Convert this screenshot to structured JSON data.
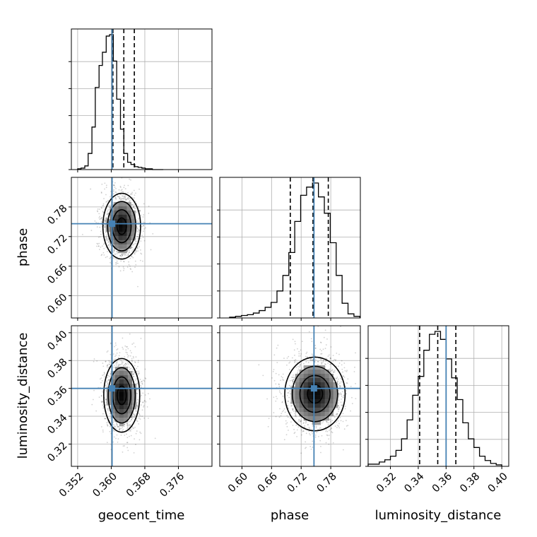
{
  "chart_data": {
    "type": "corner",
    "parameters": [
      "geocent_time",
      "phase",
      "luminosity_distance"
    ],
    "injection": {
      "geocent_time": 0.3602,
      "phase": 0.746,
      "luminosity_distance": 0.36
    },
    "injection_color": "#4682b4",
    "ranges": {
      "geocent_time": [
        0.3505,
        0.384
      ],
      "phase": [
        0.555,
        0.84
      ],
      "luminosity_distance": [
        0.304,
        0.405
      ]
    },
    "ticks": {
      "geocent_time": {
        "values": [
          0.352,
          0.36,
          0.368,
          0.376
        ],
        "labels": [
          "0.352",
          "0.360",
          "0.368",
          "0.376"
        ]
      },
      "phase": {
        "values": [
          0.6,
          0.66,
          0.72,
          0.78
        ],
        "labels": [
          "0.60",
          "0.66",
          "0.72",
          "0.78"
        ]
      },
      "luminosity_distance": {
        "values": [
          0.32,
          0.34,
          0.36,
          0.38,
          0.4
        ],
        "labels": [
          "0.32",
          "0.34",
          "0.36",
          "0.38",
          "0.40"
        ]
      }
    },
    "histograms": {
      "geocent_time": {
        "quantiles": [
          0.3604,
          0.363,
          0.3655
        ],
        "bin_edges": [
          0.352,
          0.3528,
          0.3537,
          0.3545,
          0.3554,
          0.3562,
          0.3571,
          0.3579,
          0.3588,
          0.3596,
          0.3605,
          0.3613,
          0.3622,
          0.363,
          0.3639,
          0.3647,
          0.3656,
          0.3664,
          0.3673,
          0.3681,
          0.369,
          0.3698,
          0.3707,
          0.3715,
          0.3724
        ],
        "counts": [
          1,
          2,
          5,
          22,
          58,
          112,
          142,
          160,
          182,
          184,
          148,
          96,
          55,
          22,
          10,
          7,
          4,
          3,
          2,
          1,
          1,
          0,
          0,
          0
        ]
      },
      "phase": {
        "quantiles": [
          0.698,
          0.744,
          0.775
        ],
        "bin_edges": [
          0.575,
          0.587,
          0.599,
          0.611,
          0.623,
          0.635,
          0.647,
          0.659,
          0.671,
          0.683,
          0.695,
          0.707,
          0.719,
          0.731,
          0.743,
          0.755,
          0.767,
          0.779,
          0.791,
          0.803,
          0.815,
          0.827,
          0.839
        ],
        "counts": [
          1,
          2,
          3,
          4,
          6,
          9,
          13,
          19,
          33,
          52,
          80,
          118,
          150,
          160,
          165,
          148,
          128,
          92,
          52,
          18,
          5,
          2
        ]
      },
      "luminosity_distance": {
        "quantiles": [
          0.341,
          0.354,
          0.367
        ],
        "bin_edges": [
          0.304,
          0.308,
          0.312,
          0.316,
          0.32,
          0.324,
          0.328,
          0.332,
          0.336,
          0.34,
          0.344,
          0.348,
          0.352,
          0.356,
          0.36,
          0.364,
          0.368,
          0.372,
          0.376,
          0.38,
          0.384,
          0.388,
          0.392,
          0.396,
          0.4
        ],
        "counts": [
          3,
          3,
          6,
          9,
          14,
          22,
          38,
          64,
          98,
          124,
          160,
          182,
          186,
          175,
          148,
          122,
          92,
          60,
          38,
          26,
          14,
          8,
          4,
          2
        ]
      }
    },
    "contours_2d": {
      "phase_vs_geocent_time": {
        "x": "geocent_time",
        "y": "phase",
        "center": [
          0.3625,
          0.741
        ],
        "sigma": [
          0.0022,
          0.034
        ]
      },
      "luminosity_distance_vs_geocent_time": {
        "x": "geocent_time",
        "y": "luminosity_distance",
        "center": [
          0.3625,
          0.355
        ],
        "sigma": [
          0.0021,
          0.0135
        ]
      },
      "luminosity_distance_vs_phase": {
        "x": "phase",
        "y": "luminosity_distance",
        "center": [
          0.748,
          0.356
        ],
        "sigma": [
          0.03,
          0.0135
        ]
      }
    },
    "grid": true,
    "xlabel_geocent_time": "geocent_time",
    "xlabel_phase": "phase",
    "xlabel_luminosity_distance": "luminosity_distance",
    "ylabel_phase": "phase",
    "ylabel_luminosity_distance": "luminosity_distance"
  }
}
